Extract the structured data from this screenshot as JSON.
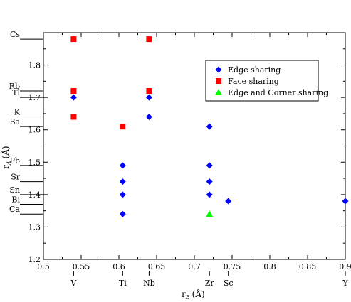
{
  "chart_data": {
    "type": "scatter",
    "title": "",
    "xlabel": "r",
    "xlabel_sub": "B",
    "xlabel_unit": "(Å)",
    "ylabel": "r",
    "ylabel_sub": "A",
    "ylabel_unit": "(Å)",
    "xlim": [
      0.5,
      0.9
    ],
    "ylim": [
      1.2,
      1.9
    ],
    "xticks": [
      0.5,
      0.55,
      0.6,
      0.65,
      0.7,
      0.75,
      0.8,
      0.85,
      0.9
    ],
    "xtick_labels": [
      "0.5",
      "0.55",
      "0.6",
      "0.65",
      "0.7",
      "0.75",
      "0.8",
      "0.85",
      "0.9"
    ],
    "yticks": [
      1.2,
      1.3,
      1.4,
      1.5,
      1.6,
      1.7,
      1.8
    ],
    "ytick_labels": [
      "1.2",
      "1.3",
      "1.4",
      "1.5",
      "1.6",
      "1.7",
      "1.8"
    ],
    "grid": false,
    "legend_position": "top-right",
    "series": [
      {
        "name": "Edge sharing",
        "marker": "diamond",
        "color": "#0000ff",
        "points": [
          [
            0.54,
            1.7
          ],
          [
            0.605,
            1.49
          ],
          [
            0.605,
            1.44
          ],
          [
            0.605,
            1.4
          ],
          [
            0.605,
            1.34
          ],
          [
            0.64,
            1.7
          ],
          [
            0.64,
            1.64
          ],
          [
            0.72,
            1.61
          ],
          [
            0.72,
            1.49
          ],
          [
            0.72,
            1.44
          ],
          [
            0.72,
            1.4
          ],
          [
            0.745,
            1.38
          ],
          [
            0.9,
            1.38
          ]
        ]
      },
      {
        "name": "Face sharing",
        "marker": "square",
        "color": "#ff0000",
        "points": [
          [
            0.54,
            1.88
          ],
          [
            0.54,
            1.72
          ],
          [
            0.54,
            1.64
          ],
          [
            0.605,
            1.61
          ],
          [
            0.64,
            1.88
          ],
          [
            0.64,
            1.72
          ]
        ]
      },
      {
        "name": "Edge and Corner sharing",
        "marker": "triangle",
        "color": "#00ff00",
        "points": [
          [
            0.72,
            1.34
          ]
        ]
      }
    ],
    "a_site_labels": [
      {
        "label": "Cs",
        "y": 1.88
      },
      {
        "label": "Rb",
        "y": 1.72
      },
      {
        "label": "Tl",
        "y": 1.7
      },
      {
        "label": "K",
        "y": 1.64
      },
      {
        "label": "Ba",
        "y": 1.61
      },
      {
        "label": "Pb",
        "y": 1.49
      },
      {
        "label": "Sr",
        "y": 1.44
      },
      {
        "label": "Sn",
        "y": 1.4
      },
      {
        "label": "Bi",
        "y": 1.37
      },
      {
        "label": "Ca",
        "y": 1.34
      }
    ],
    "b_site_labels": [
      {
        "label": "V",
        "x": 0.54
      },
      {
        "label": "Ti",
        "x": 0.605
      },
      {
        "label": "Nb",
        "x": 0.64
      },
      {
        "label": "Zr",
        "x": 0.72
      },
      {
        "label": "Sc",
        "x": 0.745
      },
      {
        "label": "Y",
        "x": 0.9
      }
    ]
  }
}
